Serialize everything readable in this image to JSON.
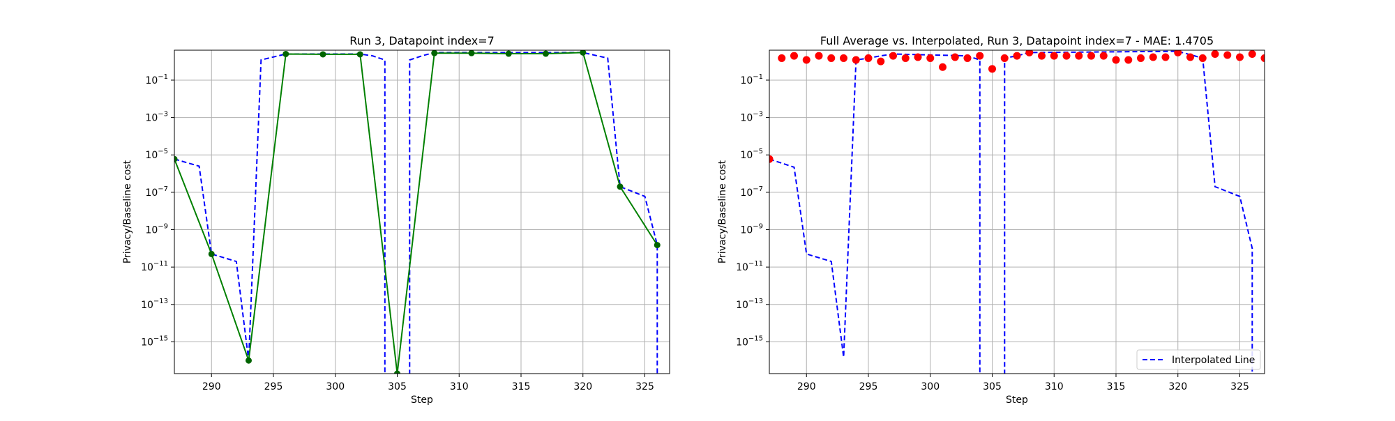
{
  "chart_data": [
    {
      "type": "line",
      "title": "Run 3, Datapoint index=7",
      "xlabel": "Step",
      "ylabel": "Privacy/Baseline cost",
      "xlim": [
        287,
        327
      ],
      "ylim": [
        2e-17,
        4
      ],
      "yscale": "log",
      "grid": true,
      "x_ticks": [
        290,
        295,
        300,
        305,
        310,
        315,
        320,
        325
      ],
      "y_ticks": [
        {
          "exp": -1,
          "label": "10",
          "sup": "−1"
        },
        {
          "exp": -3,
          "label": "10",
          "sup": "−3"
        },
        {
          "exp": -5,
          "label": "10",
          "sup": "−5"
        },
        {
          "exp": -7,
          "label": "10",
          "sup": "−7"
        },
        {
          "exp": -9,
          "label": "10",
          "sup": "−9"
        },
        {
          "exp": -11,
          "label": "10",
          "sup": "−11"
        },
        {
          "exp": -13,
          "label": "10",
          "sup": "−13"
        },
        {
          "exp": -15,
          "label": "10",
          "sup": "−15"
        }
      ],
      "series": [
        {
          "style": "dashed",
          "color": "#0000ff",
          "x": [
            287,
            289,
            290,
            292,
            293,
            294,
            296,
            299,
            302,
            303,
            304,
            304,
            306,
            306,
            307,
            308,
            311,
            314,
            317,
            320,
            322,
            323,
            325,
            326,
            326
          ],
          "y": [
            6e-06,
            2.5e-06,
            5e-11,
            2e-11,
            1e-16,
            1.2,
            2.5,
            2.5,
            2.5,
            2.0,
            1.2,
            1e-20,
            1e-20,
            1.2,
            2.0,
            3.0,
            3.0,
            3.0,
            3.0,
            3.0,
            1.5,
            2e-07,
            6e-08,
            1.5e-10,
            1e-20
          ]
        },
        {
          "style": "solid-markers",
          "color": "#008000",
          "marker_color": "#006400",
          "x": [
            287,
            290,
            293,
            296,
            299,
            302,
            305,
            308,
            311,
            314,
            317,
            320,
            323,
            326
          ],
          "y": [
            6e-06,
            5e-11,
            1e-16,
            2.5,
            2.4,
            2.4,
            2e-17,
            2.8,
            2.8,
            2.6,
            2.6,
            3.0,
            2e-07,
            1.5e-10
          ]
        }
      ]
    },
    {
      "type": "line",
      "title": "Full Average vs. Interpolated, Run 3, Datapoint index=7 - MAE: 1.4705",
      "xlabel": "Step",
      "ylabel": "Privacy/Baseline cost",
      "xlim": [
        287,
        327
      ],
      "ylim": [
        2e-17,
        4
      ],
      "yscale": "log",
      "grid": true,
      "legend": "lower-right",
      "x_ticks": [
        290,
        295,
        300,
        305,
        310,
        315,
        320,
        325
      ],
      "y_ticks": [
        {
          "exp": -1,
          "label": "10",
          "sup": "−1"
        },
        {
          "exp": -3,
          "label": "10",
          "sup": "−3"
        },
        {
          "exp": -5,
          "label": "10",
          "sup": "−5"
        },
        {
          "exp": -7,
          "label": "10",
          "sup": "−7"
        },
        {
          "exp": -9,
          "label": "10",
          "sup": "−9"
        },
        {
          "exp": -11,
          "label": "10",
          "sup": "−11"
        },
        {
          "exp": -13,
          "label": "10",
          "sup": "−13"
        },
        {
          "exp": -15,
          "label": "10",
          "sup": "−15"
        }
      ],
      "series": [
        {
          "name": "Interpolated Line",
          "style": "dashed",
          "color": "#0000ff",
          "x": [
            287,
            289,
            290,
            292,
            293,
            294,
            295,
            296,
            297,
            303,
            304,
            304,
            306,
            306,
            307,
            308,
            320,
            322,
            323,
            325,
            326,
            326
          ],
          "y": [
            6e-06,
            2.2e-06,
            5e-11,
            2e-11,
            1.5e-16,
            1.2,
            1.5,
            2.0,
            2.5,
            2.0,
            1.2,
            1e-20,
            1e-20,
            1.5,
            2.0,
            3.0,
            3.5,
            1.5,
            2e-07,
            6e-08,
            1e-10,
            1e-20
          ]
        },
        {
          "style": "scatter",
          "color": "#ff0000",
          "x": [
            287,
            288,
            289,
            290,
            291,
            292,
            293,
            294,
            295,
            296,
            297,
            298,
            299,
            300,
            301,
            302,
            303,
            304,
            305,
            306,
            307,
            308,
            309,
            310,
            311,
            312,
            313,
            314,
            315,
            316,
            317,
            318,
            319,
            320,
            321,
            322,
            323,
            324,
            325,
            326,
            327
          ],
          "y": [
            6e-06,
            1.5,
            2.0,
            1.2,
            2.0,
            1.5,
            1.5,
            1.2,
            1.5,
            1.0,
            2.0,
            1.5,
            1.7,
            1.5,
            0.5,
            1.7,
            1.5,
            2.0,
            0.4,
            1.5,
            2.0,
            3.0,
            2.0,
            2.0,
            2.0,
            2.0,
            2.0,
            2.0,
            1.2,
            1.2,
            1.5,
            1.7,
            1.7,
            3.0,
            1.7,
            1.5,
            2.5,
            2.2,
            1.7,
            2.5,
            1.5
          ]
        }
      ]
    }
  ]
}
